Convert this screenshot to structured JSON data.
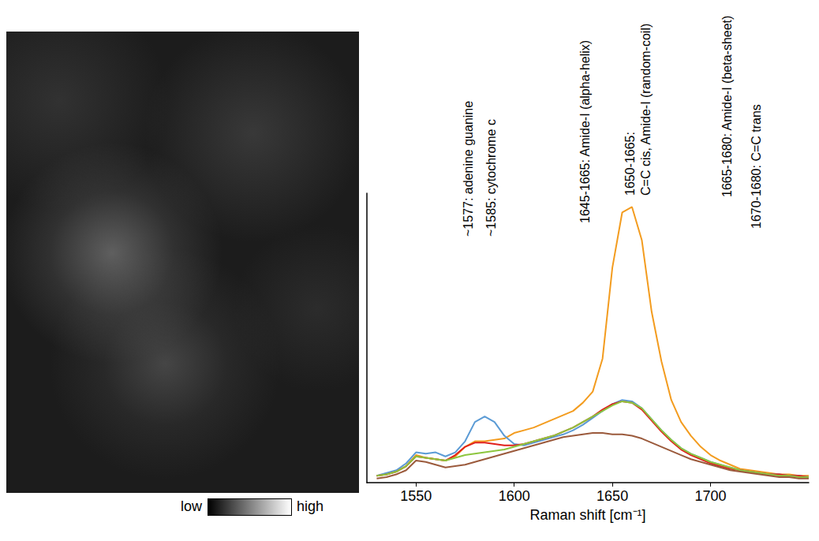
{
  "image": {
    "colorbar": {
      "low": "low",
      "high": "high"
    }
  },
  "chart_data": {
    "type": "line",
    "x_label": "Raman shift [cm⁻¹]",
    "annotations": [
      "~1577: adenine guanine",
      "~1585: cytochrome c",
      "1645-1665: Amide-I (alpha-helix)",
      "1650-1665:\nC=C cis, Amide-I (random-coil)",
      "1665-1680: Amide-I (beta-sheet)",
      "1670-1680: C=C trans"
    ],
    "x": [
      1530,
      1535,
      1540,
      1545,
      1550,
      1555,
      1560,
      1565,
      1570,
      1575,
      1580,
      1585,
      1590,
      1595,
      1600,
      1605,
      1610,
      1615,
      1620,
      1625,
      1630,
      1635,
      1640,
      1645,
      1650,
      1655,
      1660,
      1665,
      1670,
      1675,
      1680,
      1685,
      1690,
      1695,
      1700,
      1705,
      1710,
      1715,
      1720,
      1725,
      1730,
      1735,
      1740,
      1745,
      1750
    ],
    "series": [
      {
        "color": "#f39c1f",
        "values": [
          2.5,
          3,
          4,
          6,
          10,
          9,
          8.5,
          8,
          9.5,
          13,
          15,
          15,
          15.5,
          16,
          18,
          19,
          20,
          21.5,
          23,
          24.5,
          26,
          29,
          33,
          45,
          78,
          98,
          100,
          88,
          62,
          44,
          30,
          22,
          17,
          13,
          10,
          8,
          6.5,
          5,
          4.5,
          4,
          3.5,
          3,
          3,
          2.5,
          2.5
        ]
      },
      {
        "color": "#5b9bd5",
        "values": [
          2.5,
          3.5,
          4.5,
          7,
          11,
          10.5,
          11,
          9.5,
          11,
          15,
          22,
          24,
          22,
          17,
          14,
          13.5,
          14.5,
          15.5,
          16.5,
          17.5,
          19,
          21,
          23.5,
          26,
          28.5,
          30,
          29.5,
          27,
          23,
          19,
          15.5,
          12.5,
          10.5,
          9,
          7.5,
          6.5,
          5.5,
          4.5,
          4,
          3.5,
          3,
          3,
          2.5,
          2.5,
          2
        ]
      },
      {
        "color": "#e0201b",
        "values": [
          2.5,
          3,
          4,
          6,
          9.5,
          9,
          8.5,
          8,
          10,
          13,
          14.5,
          14.5,
          14,
          13.5,
          13.5,
          14,
          15,
          16,
          17,
          18.5,
          20,
          22,
          24,
          26.5,
          28.5,
          29.5,
          29,
          26.5,
          22.5,
          18.5,
          15,
          12,
          10,
          8.5,
          7,
          6,
          5,
          4.5,
          4,
          3.5,
          3,
          3,
          2.5,
          2.5,
          2
        ]
      },
      {
        "color": "#8dc63f",
        "values": [
          2.5,
          3,
          4,
          6,
          9.5,
          9,
          8.5,
          8,
          9,
          10,
          10.5,
          11,
          11.5,
          12,
          13,
          14,
          15,
          16,
          17,
          18.5,
          20,
          22,
          24,
          26,
          28,
          29.5,
          29,
          27,
          23,
          19,
          15.5,
          12.5,
          10.5,
          9,
          7.5,
          6.5,
          5.5,
          4.5,
          4,
          3.5,
          3,
          2.5,
          2.5,
          2,
          2
        ]
      },
      {
        "color": "#9b5a3c",
        "values": [
          1.5,
          2,
          3,
          4.5,
          8,
          7.5,
          6.5,
          5.5,
          6,
          6.5,
          7.5,
          8.5,
          9.5,
          10.5,
          11.5,
          12.5,
          13.5,
          14.5,
          15.5,
          16.5,
          17,
          17.5,
          18,
          18,
          17.5,
          17.5,
          17,
          16,
          14.5,
          13,
          11.5,
          10,
          8.5,
          7.5,
          6.5,
          5.5,
          4.5,
          4,
          3.5,
          3,
          2.5,
          2,
          2,
          1.5,
          1.5
        ]
      }
    ],
    "xlim": [
      1525,
      1750
    ],
    "xticks": [
      1550,
      1600,
      1650,
      1700
    ],
    "ylim": [
      0,
      105
    ],
    "yticks": [],
    "tick_labels": "x",
    "grid": false,
    "marker": "none",
    "line_style": "solid"
  }
}
